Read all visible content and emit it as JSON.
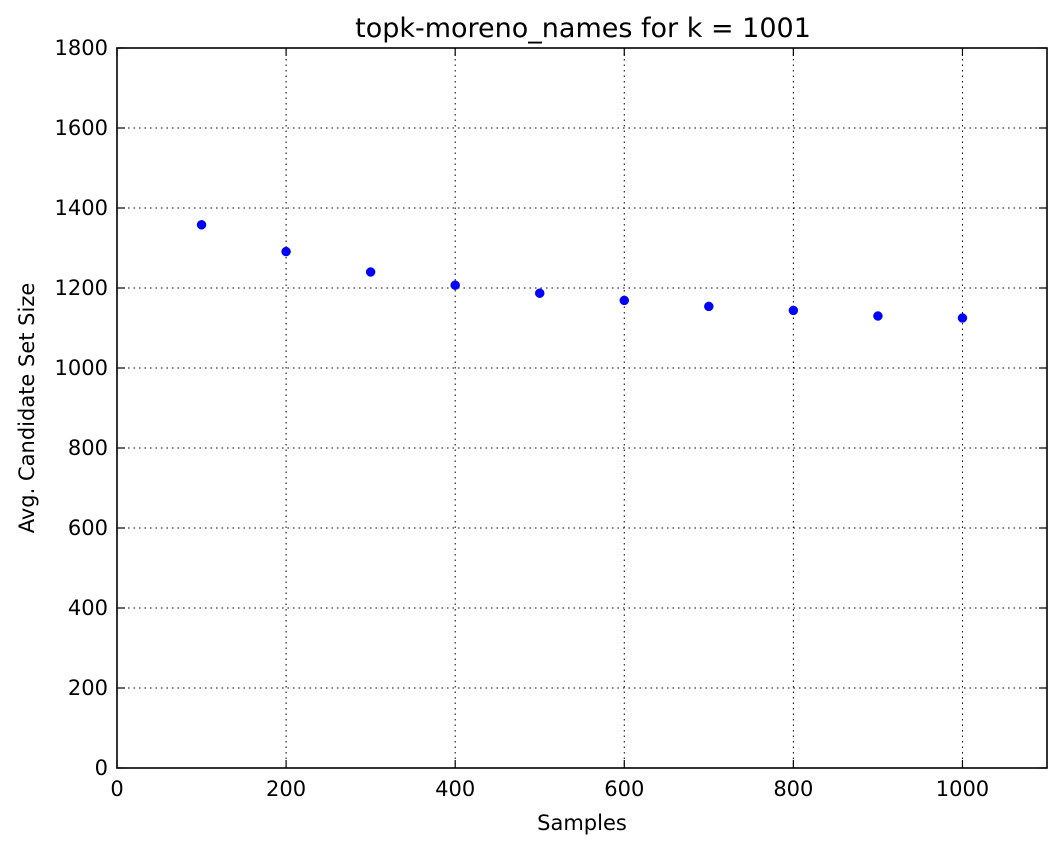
{
  "chart_data": {
    "type": "scatter",
    "title": "topk-moreno_names for k = 1001",
    "xlabel": "Samples",
    "ylabel": "Avg. Candidate Set Size",
    "xlim": [
      0,
      1100
    ],
    "ylim": [
      0,
      1800
    ],
    "xticks": [
      0,
      200,
      400,
      600,
      800,
      1000
    ],
    "yticks": [
      0,
      200,
      400,
      600,
      800,
      1000,
      1200,
      1400,
      1600,
      1800
    ],
    "grid": true,
    "marker_color": "#0000ff",
    "series": [
      {
        "x": [
          100,
          200,
          300,
          400,
          500,
          600,
          700,
          800,
          900,
          1000
        ],
        "y": [
          1358,
          1291,
          1240,
          1207,
          1187,
          1169,
          1154,
          1144,
          1130,
          1125
        ]
      }
    ]
  }
}
